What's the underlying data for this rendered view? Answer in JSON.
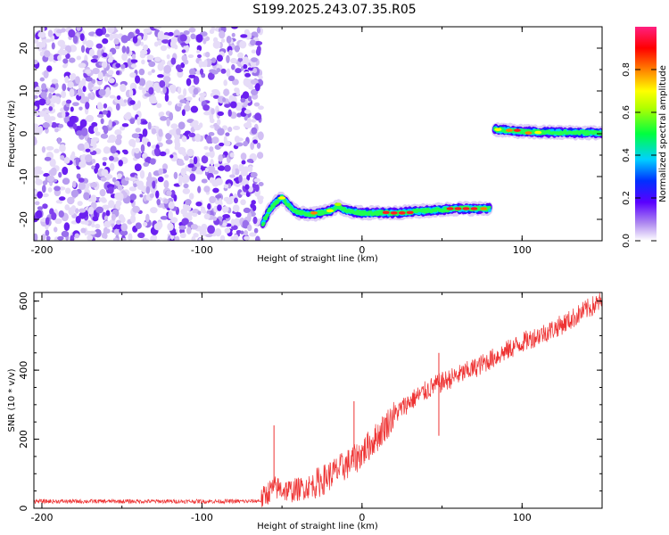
{
  "title": "S199.2025.243.07.35.R05",
  "colors": {
    "trace": "#ee3333",
    "scatter": "#8a3cf0",
    "axis": "#000000"
  },
  "chart_data": [
    {
      "type": "heatmap",
      "xlabel": "Height of straight line (km)",
      "ylabel": "Frequency (Hz)",
      "xlim": [
        -205,
        150
      ],
      "ylim": [
        -25,
        25
      ],
      "x_ticks": [
        -200,
        -100,
        0,
        100
      ],
      "y_ticks": [
        -20,
        -10,
        0,
        10,
        20
      ],
      "noise_region": {
        "x_range": [
          -205,
          -63
        ],
        "y_range": [
          -25,
          25
        ]
      },
      "signal_track": [
        {
          "x": -62,
          "y": -21
        },
        {
          "x": -58,
          "y": -18
        },
        {
          "x": -54,
          "y": -16
        },
        {
          "x": -50,
          "y": -15
        },
        {
          "x": -45,
          "y": -17
        },
        {
          "x": -40,
          "y": -18.5
        },
        {
          "x": -30,
          "y": -18.8
        },
        {
          "x": -20,
          "y": -18
        },
        {
          "x": -15,
          "y": -17
        },
        {
          "x": -10,
          "y": -18
        },
        {
          "x": 0,
          "y": -18.5
        },
        {
          "x": 20,
          "y": -18.5
        },
        {
          "x": 40,
          "y": -18
        },
        {
          "x": 60,
          "y": -17.5
        },
        {
          "x": 80,
          "y": -17.5
        },
        {
          "x": 84,
          "y": 1
        },
        {
          "x": 100,
          "y": 0.5
        },
        {
          "x": 120,
          "y": 0.3
        },
        {
          "x": 150,
          "y": 0.2
        }
      ],
      "colorbar": {
        "label": "Normalized spectral amplitude",
        "range": [
          0,
          1
        ],
        "ticks": [
          "0.0",
          "0.2",
          "0.4",
          "0.6",
          "0.8"
        ]
      },
      "grid": false
    },
    {
      "type": "line",
      "xlabel": "Height of straight line (km)",
      "ylabel": "SNR (10 * v/v)",
      "xlim": [
        -205,
        150
      ],
      "ylim": [
        0,
        625
      ],
      "x_ticks": [
        -200,
        -100,
        0,
        100
      ],
      "y_ticks": [
        0,
        200,
        400,
        600
      ],
      "series": [
        {
          "x": [
            -205,
            -150,
            -100,
            -70,
            -63,
            -60,
            -55,
            -50,
            -45,
            -40,
            -35,
            -30,
            -25,
            -20,
            -15,
            -10,
            -5,
            0,
            5,
            10,
            15,
            20,
            25,
            30,
            35,
            40,
            45,
            50,
            60,
            70,
            80,
            90,
            100,
            110,
            120,
            130,
            140,
            150
          ],
          "values": [
            20,
            20,
            20,
            20,
            22,
            40,
            60,
            55,
            50,
            55,
            60,
            70,
            80,
            95,
            110,
            125,
            140,
            160,
            185,
            210,
            240,
            270,
            290,
            310,
            325,
            340,
            355,
            365,
            385,
            405,
            430,
            455,
            480,
            500,
            520,
            545,
            575,
            600
          ],
          "spikes": [
            {
              "x": -55,
              "y": 240
            },
            {
              "x": -5,
              "y": 310
            },
            {
              "x": 48,
              "y": 450
            },
            {
              "x": 48,
              "y": 210
            }
          ]
        }
      ],
      "grid": false
    }
  ]
}
